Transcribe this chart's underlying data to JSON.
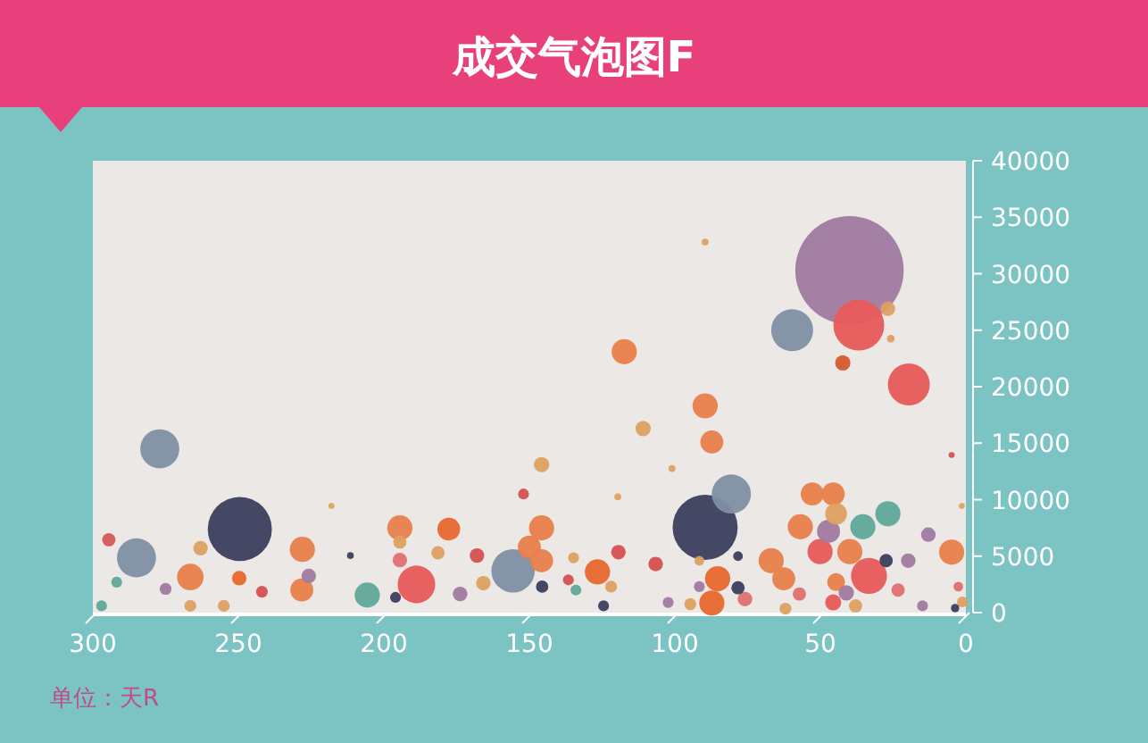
{
  "chart_data": {
    "type": "bubble",
    "title": "成交气泡图F",
    "annotations": [
      "单位：天R"
    ],
    "xlim": [
      300,
      0
    ],
    "xticks": [
      300,
      250,
      200,
      150,
      100,
      50,
      0
    ],
    "ylim": [
      0,
      40000
    ],
    "yticks": [
      0,
      5000,
      10000,
      15000,
      20000,
      25000,
      30000,
      35000,
      40000
    ],
    "x": [
      277,
      249.5,
      285,
      294.5,
      228,
      266.5,
      194.5,
      177.7,
      188.8,
      205.7,
      155.6,
      145.8,
      150,
      145.8,
      145.8,
      152,
      145.6,
      126.6,
      218,
      211.5,
      228.2,
      225.8,
      263,
      249.7,
      181.4,
      168,
      291.8,
      275,
      165.8,
      297,
      266.5,
      173.8,
      241.9,
      194.5,
      194.5,
      196,
      255,
      134,
      136.6,
      134.8,
      40,
      36.8,
      59.7,
      19.6,
      42.3,
      26.8,
      25.8,
      117.4,
      89.6,
      87.3,
      110.9,
      89.6,
      101,
      119.6,
      4.9,
      1.4,
      89.6,
      80.6,
      52.8,
      45.6,
      26.8,
      35.4,
      44.6,
      56.9,
      47.2,
      50.1,
      39.9,
      33.3,
      66.9,
      62.6,
      4.9,
      12.9,
      27.4,
      19.8,
      85.3,
      87.3,
      75.9,
      78.3,
      78.3,
      119.4,
      106.6,
      91.6,
      91.6,
      102.3,
      44.6,
      41.1,
      45.6,
      23.3,
      14.9,
      1.2,
      2.6,
      57.2,
      62,
      124.5,
      121.9,
      3.7,
      37.9,
      94.7
    ],
    "values": [
      14500,
      7400,
      4850,
      6450,
      5600,
      3150,
      7500,
      7400,
      2500,
      1550,
      3700,
      7500,
      5800,
      4600,
      13100,
      10500,
      2300,
      3600,
      9450,
      5050,
      2000,
      3250,
      5700,
      3050,
      5300,
      5050,
      2700,
      2100,
      2600,
      600,
      600,
      1650,
      1850,
      6250,
      4650,
      1350,
      600,
      2000,
      2900,
      4850,
      30300,
      25450,
      25000,
      20200,
      22100,
      26900,
      24250,
      23100,
      18300,
      15100,
      16300,
      32800,
      12750,
      10250,
      13950,
      9450,
      7550,
      10500,
      10500,
      10500,
      8750,
      7600,
      8750,
      7600,
      7200,
      5400,
      5400,
      3250,
      4600,
      3000,
      5350,
      6900,
      4600,
      4600,
      3000,
      850,
      1200,
      2200,
      5000,
      5350,
      4300,
      4600,
      2300,
      900,
      2700,
      1750,
      900,
      2000,
      600,
      950,
      2300,
      1650,
      350,
      600,
      2300,
      400,
      600,
      750
    ],
    "sizes": [
      0.13,
      0.35,
      0.13,
      0.015,
      0.054,
      0.06,
      0.054,
      0.044,
      0.12,
      0.054,
      0.16,
      0.054,
      0.045,
      0.045,
      0.02,
      0.01,
      0.013,
      0.054,
      0.003,
      0.004,
      0.045,
      0.018,
      0.018,
      0.018,
      0.015,
      0.018,
      0.01,
      0.012,
      0.018,
      0.01,
      0.012,
      0.018,
      0.012,
      0.015,
      0.018,
      0.01,
      0.012,
      0.01,
      0.01,
      0.01,
      1,
      0.22,
      0.15,
      0.15,
      0.02,
      0.018,
      0.005,
      0.054,
      0.054,
      0.045,
      0.02,
      0.004,
      0.004,
      0.004,
      0.003,
      0.003,
      0.36,
      0.13,
      0.045,
      0.045,
      0.054,
      0.054,
      0.04,
      0.054,
      0.045,
      0.054,
      0.054,
      0.11,
      0.054,
      0.045,
      0.054,
      0.018,
      0.015,
      0.018,
      0.054,
      0.054,
      0.018,
      0.015,
      0.008,
      0.018,
      0.018,
      0.008,
      0.01,
      0.01,
      0.027,
      0.02,
      0.022,
      0.015,
      0.01,
      0.01,
      0.008,
      0.015,
      0.012,
      0.01,
      0.012,
      0.006,
      0.015,
      0.012
    ],
    "colors": [
      "#7f8fa3",
      "#3c3f5e",
      "#7f8fa3",
      "#d65a5a",
      "#e8804a",
      "#e8804a",
      "#e8804a",
      "#e8682e",
      "#e85a5a",
      "#5fa89a",
      "#7f8fa3",
      "#e8804a",
      "#e8804a",
      "#e8804a",
      "#dea060",
      "#d65050",
      "#3c3f5e",
      "#e8682e",
      "#dea060",
      "#3c3f5e",
      "#e8804a",
      "#a07aa0",
      "#dea060",
      "#e8682e",
      "#dea060",
      "#d65050",
      "#5fa89a",
      "#a07aa0",
      "#dea060",
      "#5fa89a",
      "#dea060",
      "#a07aa0",
      "#d65050",
      "#dea060",
      "#e07070",
      "#3c3f5e",
      "#dea060",
      "#5fa89a",
      "#d65050",
      "#dea060",
      "#a07aa0",
      "#e85a5a",
      "#7f8fa3",
      "#e85a5a",
      "#d65a30",
      "#dea060",
      "#dea060",
      "#e8804a",
      "#e8804a",
      "#e8804a",
      "#dea060",
      "#dea060",
      "#dea060",
      "#dea060",
      "#d65050",
      "#dea060",
      "#3c3f5e",
      "#7f8fa3",
      "#e8804a",
      "#e8804a",
      "#5fa89a",
      "#5fa89a",
      "#dea060",
      "#e8804a",
      "#a07aa0",
      "#e85a5a",
      "#e8804a",
      "#e85a5a",
      "#e8804a",
      "#e8804a",
      "#e8804a",
      "#a07aa0",
      "#3c3f5e",
      "#a07aa0",
      "#e8682e",
      "#e8682e",
      "#e07070",
      "#3c3f5e",
      "#3c3f5e",
      "#d65050",
      "#d65050",
      "#dea060",
      "#a07aa0",
      "#a07aa0",
      "#e8804a",
      "#a07aa0",
      "#e85a5a",
      "#e07070",
      "#a07aa0",
      "#dea060",
      "#e07070",
      "#e07070",
      "#dea060",
      "#3c3f5e",
      "#dea060",
      "#3c3f5e",
      "#dea060",
      "#dea060"
    ]
  }
}
